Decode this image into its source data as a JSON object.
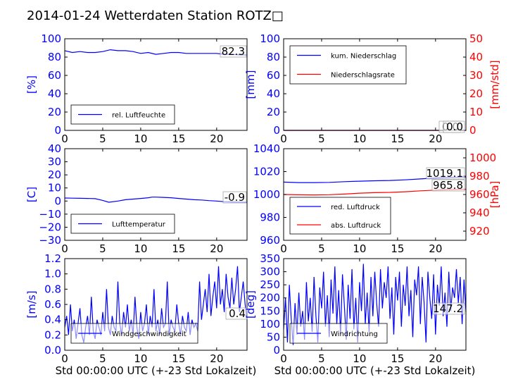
{
  "figure": {
    "title": "2014-01-24 Wetterdaten Station ROTZ□"
  },
  "colors": {
    "blue": "#0000ff",
    "red": "#ff0000",
    "axis": "#000000"
  },
  "chart_data": [
    {
      "id": "humidity",
      "type": "line",
      "title": "",
      "xlabel": "",
      "ylabel": "[%]",
      "xlim": [
        0,
        24
      ],
      "ylim": [
        0,
        100
      ],
      "xticks": [
        "0",
        "5",
        "10",
        "15",
        "20"
      ],
      "yticks": [
        "0",
        "20",
        "40",
        "60",
        "80",
        "100"
      ],
      "legend_position": "lower-left",
      "annotation": "82.3",
      "series": [
        {
          "name": "rel. Luftfeuchte",
          "color": "#0000ff",
          "axis": "left",
          "x": [
            0,
            1,
            2,
            3,
            4,
            5,
            6,
            7,
            8,
            9,
            10,
            11,
            12,
            13,
            14,
            15,
            16,
            17,
            18,
            19,
            20,
            21,
            22,
            23,
            24
          ],
          "y": [
            87,
            85,
            86,
            85,
            85,
            86,
            88,
            87,
            87,
            86,
            84,
            85,
            83,
            84,
            85,
            85,
            84,
            84,
            84,
            84,
            84,
            83,
            83,
            82.5,
            82.3
          ]
        }
      ]
    },
    {
      "id": "precip",
      "type": "line",
      "title": "",
      "xlabel": "",
      "ylabel": "[mm]",
      "ylabel_right": "[mm/std]",
      "xlim": [
        0,
        24
      ],
      "ylim": [
        0,
        100
      ],
      "ylim_right": [
        0,
        50
      ],
      "xticks": [
        "0",
        "5",
        "10",
        "15",
        "20"
      ],
      "yticks": [
        "0",
        "20",
        "40",
        "60",
        "80",
        "100"
      ],
      "yticks_right": [
        "0",
        "10",
        "20",
        "30",
        "40",
        "50"
      ],
      "legend_position": "upper-left",
      "annotations": [
        "0.0",
        "0.0"
      ],
      "series": [
        {
          "name": "kum. Niederschlag",
          "color": "#0000ff",
          "axis": "left",
          "x": [
            0,
            24
          ],
          "y": [
            0,
            0
          ]
        },
        {
          "name": "Niederschlagsrate",
          "color": "#ff0000",
          "axis": "right",
          "x": [
            0,
            24
          ],
          "y": [
            0,
            0
          ]
        }
      ]
    },
    {
      "id": "temperature",
      "type": "line",
      "title": "",
      "xlabel": "",
      "ylabel": "[C]",
      "xlim": [
        0,
        24
      ],
      "ylim": [
        -30,
        40
      ],
      "xticks": [
        "0",
        "5",
        "10",
        "15",
        "20"
      ],
      "yticks": [
        "−30",
        "−20",
        "−10",
        "0",
        "10",
        "20",
        "30",
        "40"
      ],
      "legend_position": "lower-left",
      "annotation": "-0.9",
      "series": [
        {
          "name": "Lufttemperatur",
          "color": "#0000ff",
          "axis": "left",
          "x": [
            0,
            1,
            2,
            3,
            4,
            5,
            5.8,
            7,
            8,
            9,
            10,
            11,
            11.5,
            12,
            13,
            14,
            15,
            16,
            17,
            18,
            19,
            20,
            21,
            22,
            23,
            24
          ],
          "y": [
            2.3,
            2.2,
            2.1,
            2.0,
            1.8,
            0.5,
            -0.9,
            0.0,
            1.0,
            1.5,
            2.0,
            2.5,
            3.0,
            3.0,
            2.8,
            2.5,
            2.0,
            1.5,
            1.0,
            0.8,
            0.3,
            0.0,
            -0.5,
            -0.7,
            -0.8,
            -0.9
          ]
        }
      ]
    },
    {
      "id": "pressure",
      "type": "line",
      "title": "",
      "xlabel": "",
      "ylabel": "",
      "ylabel_right": "[hPa]",
      "xlim": [
        0,
        24
      ],
      "ylim": [
        950,
        1050
      ],
      "ylim_right": [
        910,
        1010
      ],
      "xticks": [
        "0",
        "5",
        "10",
        "15",
        "20"
      ],
      "yticks": [
        "960",
        "980",
        "1000",
        "1020",
        "1040"
      ],
      "yticks_right": [
        "920",
        "940",
        "960",
        "980",
        "1000"
      ],
      "legend_position": "lower-left",
      "annotations": [
        "1019.1",
        "965.8"
      ],
      "series": [
        {
          "name": "red. Luftdruck",
          "color": "#0000ff",
          "axis": "left",
          "x": [
            0,
            2,
            4,
            6,
            8,
            10,
            12,
            14,
            16,
            18,
            20,
            22,
            24
          ],
          "y": [
            1013.5,
            1013,
            1013,
            1013.2,
            1014,
            1014.5,
            1015,
            1015.3,
            1016,
            1017,
            1018,
            1018.7,
            1019.1
          ]
        },
        {
          "name": "abs. Luftdruck",
          "color": "#ff0000",
          "axis": "right",
          "x": [
            0,
            2,
            4,
            6,
            8,
            10,
            12,
            14,
            16,
            18,
            20,
            22,
            24
          ],
          "y": [
            960,
            959.7,
            959.5,
            959.8,
            960.5,
            961.5,
            962,
            962.3,
            963,
            964,
            964.8,
            965.3,
            965.8
          ]
        }
      ]
    },
    {
      "id": "windspeed",
      "type": "line",
      "title": "",
      "xlabel": "Std 00:00:00 UTC (+-23 Std Lokalzeit)",
      "ylabel": "[m/s]",
      "xlim": [
        0,
        24
      ],
      "ylim": [
        0,
        1.2
      ],
      "xticks": [
        "0",
        "5",
        "10",
        "15",
        "20"
      ],
      "yticks": [
        "0.0",
        "0.2",
        "0.4",
        "0.6",
        "0.8",
        "1.0",
        "1.2"
      ],
      "legend_position": "lower-center",
      "annotation": "0.4",
      "series": [
        {
          "name": "Windgeschwindigkeit",
          "color": "#0000ff",
          "axis": "left",
          "x": [
            0,
            0.25,
            0.5,
            0.75,
            1,
            1.25,
            1.5,
            1.75,
            2,
            2.25,
            2.5,
            2.75,
            3,
            3.25,
            3.5,
            3.75,
            4,
            4.25,
            4.5,
            4.75,
            5,
            5.25,
            5.5,
            5.75,
            6,
            6.25,
            6.5,
            6.75,
            7,
            7.25,
            7.5,
            7.75,
            8,
            8.25,
            8.5,
            8.75,
            9,
            9.25,
            9.5,
            9.75,
            10,
            10.25,
            10.5,
            10.75,
            11,
            11.25,
            11.5,
            11.75,
            12,
            12.25,
            12.5,
            12.75,
            13,
            13.25,
            13.5,
            13.75,
            14,
            14.25,
            14.5,
            14.75,
            15,
            15.25,
            15.5,
            15.75,
            16,
            16.25,
            16.5,
            16.75,
            17,
            17.25,
            17.5,
            17.75,
            18,
            18.25,
            18.5,
            18.75,
            19,
            19.25,
            19.5,
            19.75,
            20,
            20.25,
            20.5,
            20.75,
            21,
            21.25,
            21.5,
            21.75,
            22,
            22.25,
            22.5,
            22.75,
            23,
            23.25,
            23.5,
            23.75,
            24
          ],
          "y": [
            0.3,
            0.45,
            0.2,
            0.6,
            0.25,
            0.4,
            0.15,
            0.35,
            0.55,
            0.2,
            0.1,
            0.3,
            0.45,
            0.2,
            0.7,
            0.25,
            0.15,
            0.4,
            0.3,
            0.2,
            0.5,
            0.25,
            0.8,
            0.3,
            0.2,
            0.45,
            0.3,
            0.25,
            0.9,
            0.35,
            0.2,
            0.5,
            0.3,
            0.6,
            0.25,
            0.4,
            0.2,
            0.7,
            0.3,
            0.15,
            0.5,
            0.25,
            0.35,
            0.6,
            0.2,
            0.45,
            0.3,
            0.8,
            0.25,
            0.4,
            0.2,
            0.55,
            0.3,
            0.35,
            0.9,
            0.2,
            0.4,
            0.3,
            0.25,
            0.6,
            0.35,
            0.2,
            0.45,
            0.3,
            0.25,
            0.5,
            0.2,
            0.4,
            0.3,
            0.35,
            0.25,
            0.9,
            0.4,
            0.6,
            0.8,
            0.5,
            1.0,
            0.45,
            0.7,
            0.9,
            0.55,
            1.1,
            0.6,
            0.8,
            0.5,
            1.0,
            0.7,
            0.55,
            0.95,
            0.6,
            0.8,
            1.1,
            0.5,
            0.7,
            0.9,
            0.6,
            0.4
          ]
        }
      ]
    },
    {
      "id": "winddir",
      "type": "line",
      "title": "",
      "xlabel": "Std 00:00:00 UTC (+-23 Std Lokalzeit)",
      "ylabel": "[deg]",
      "xlim": [
        0,
        24
      ],
      "ylim": [
        0,
        350
      ],
      "xticks": [
        "0",
        "5",
        "10",
        "15",
        "20"
      ],
      "yticks": [
        "0",
        "50",
        "100",
        "150",
        "200",
        "250",
        "300",
        "350"
      ],
      "legend_position": "lower-left",
      "annotation": "147.2",
      "series": [
        {
          "name": "Windrichtung",
          "color": "#0000ff",
          "axis": "left",
          "x": [
            0,
            0.25,
            0.5,
            0.75,
            1,
            1.25,
            1.5,
            1.75,
            2,
            2.25,
            2.5,
            2.75,
            3,
            3.25,
            3.5,
            3.75,
            4,
            4.25,
            4.5,
            4.75,
            5,
            5.25,
            5.5,
            5.75,
            6,
            6.25,
            6.5,
            6.75,
            7,
            7.25,
            7.5,
            7.75,
            8,
            8.25,
            8.5,
            8.75,
            9,
            9.25,
            9.5,
            9.75,
            10,
            10.25,
            10.5,
            10.75,
            11,
            11.25,
            11.5,
            11.75,
            12,
            12.25,
            12.5,
            12.75,
            13,
            13.25,
            13.5,
            13.75,
            14,
            14.25,
            14.5,
            14.75,
            15,
            15.25,
            15.5,
            15.75,
            16,
            16.25,
            16.5,
            16.75,
            17,
            17.25,
            17.5,
            17.75,
            18,
            18.25,
            18.5,
            18.75,
            19,
            19.25,
            19.5,
            19.75,
            20,
            20.25,
            20.5,
            20.75,
            21,
            21.25,
            21.5,
            21.75,
            22,
            22.25,
            22.5,
            22.75,
            23,
            23.25,
            23.5,
            23.75,
            24
          ],
          "y": [
            80,
            200,
            30,
            250,
            120,
            20,
            180,
            60,
            220,
            90,
            150,
            40,
            260,
            110,
            200,
            70,
            280,
            130,
            30,
            240,
            160,
            300,
            90,
            210,
            50,
            270,
            140,
            320,
            100,
            230,
            60,
            290,
            170,
            40,
            250,
            120,
            310,
            80,
            200,
            30,
            260,
            150,
            330,
            100,
            220,
            70,
            280,
            130,
            300,
            180,
            90,
            310,
            160,
            260,
            200,
            320,
            120,
            240,
            60,
            280,
            190,
            300,
            90,
            250,
            170,
            320,
            130,
            230,
            50,
            270,
            210,
            320,
            100,
            280,
            180,
            30,
            300,
            200,
            120,
            290,
            60,
            250,
            170,
            320,
            130,
            220,
            90,
            300,
            150,
            240,
            200,
            310,
            180,
            280,
            100,
            270,
            147.2
          ]
        }
      ]
    }
  ]
}
